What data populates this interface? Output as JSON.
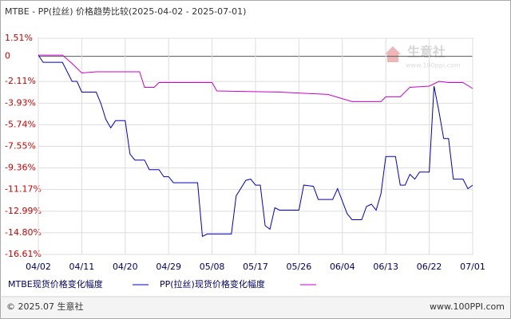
{
  "chart_data": {
    "type": "line",
    "title": "MTBE - PP(拉丝) 价格趋势比较(2025-04-02 - 2025-07-01)",
    "xlim": [
      "04/02",
      "07/01"
    ],
    "xticks": [
      "04/02",
      "04/11",
      "04/20",
      "04/29",
      "05/08",
      "05/17",
      "05/26",
      "06/04",
      "06/13",
      "06/22",
      "07/01"
    ],
    "ylim": [
      -16.61,
      1.51
    ],
    "yticks": [
      {
        "value": 1.51,
        "label": "1.51%"
      },
      0,
      {
        "value": -2.11,
        "label": "-2.11%"
      },
      {
        "value": -3.93,
        "label": "-3.93%"
      },
      {
        "value": -5.74,
        "label": "-5.74%"
      },
      {
        "value": -7.55,
        "label": "-7.55%"
      },
      {
        "value": -9.36,
        "label": "-9.36%"
      },
      {
        "value": -11.17,
        "label": "-11.17%"
      },
      {
        "value": -12.99,
        "label": "-12.99%"
      },
      {
        "value": -14.8,
        "label": "-14.80%"
      },
      {
        "value": -16.61,
        "label": "-16.61%"
      }
    ],
    "grid": true,
    "series": [
      {
        "name": "MTBE现货价格变化幅度",
        "color": "#0000cc",
        "x": [
          "04/02",
          "04/03",
          "04/07",
          "04/09",
          "04/10",
          "04/11",
          "04/14",
          "04/15",
          "04/16",
          "04/17",
          "04/18",
          "04/20",
          "04/21",
          "04/22",
          "04/24",
          "04/25",
          "04/27",
          "04/28",
          "04/29",
          "04/30",
          "05/05",
          "05/06",
          "05/07",
          "05/12",
          "05/13",
          "05/15",
          "05/16",
          "05/17",
          "05/18",
          "05/19",
          "05/20",
          "05/21",
          "05/22",
          "05/26",
          "05/27",
          "05/29",
          "05/30",
          "06/02",
          "06/03",
          "06/05",
          "06/06",
          "06/08",
          "06/09",
          "06/10",
          "06/11",
          "06/12",
          "06/13",
          "06/15",
          "06/16",
          "06/17",
          "06/18",
          "06/19",
          "06/20",
          "06/22",
          "06/23",
          "06/24",
          "06/25",
          "06/26",
          "06/27",
          "06/29",
          "06/30",
          "07/01"
        ],
        "values": [
          0.1,
          -0.5,
          -0.5,
          -2.1,
          -2.1,
          -3.0,
          -3.0,
          -4.0,
          -5.3,
          -6.0,
          -5.4,
          -5.4,
          -8.2,
          -8.7,
          -8.7,
          -9.5,
          -9.5,
          -10.1,
          -10.1,
          -10.6,
          -10.6,
          -15.1,
          -14.9,
          -14.9,
          -11.7,
          -10.4,
          -10.3,
          -10.8,
          -10.8,
          -14.2,
          -14.5,
          -12.7,
          -12.9,
          -12.9,
          -10.8,
          -10.9,
          -12.0,
          -12.0,
          -11.1,
          -13.2,
          -13.7,
          -13.7,
          -12.6,
          -12.4,
          -12.9,
          -11.5,
          -8.4,
          -8.4,
          -10.8,
          -10.8,
          -9.9,
          -10.3,
          -9.7,
          -9.7,
          -2.5,
          -4.6,
          -6.9,
          -6.9,
          -10.3,
          -10.3,
          -11.1,
          -10.8
        ]
      },
      {
        "name": "PP(拉丝)现货价格变化幅度",
        "color": "#cc00cc",
        "x": [
          "04/02",
          "04/07",
          "04/09",
          "04/11",
          "04/14",
          "04/23",
          "04/24",
          "04/26",
          "04/27",
          "05/08",
          "05/09",
          "05/22",
          "06/01",
          "06/06",
          "06/12",
          "06/13",
          "06/16",
          "06/18",
          "06/22",
          "06/24",
          "06/26",
          "06/29",
          "07/01"
        ],
        "values": [
          0.1,
          0.1,
          -0.6,
          -1.4,
          -1.3,
          -1.3,
          -2.6,
          -2.6,
          -2.2,
          -2.2,
          -2.9,
          -3.0,
          -3.2,
          -3.8,
          -3.8,
          -3.4,
          -3.4,
          -2.6,
          -2.5,
          -2.1,
          -2.2,
          -2.2,
          -2.7
        ]
      }
    ]
  },
  "watermark": {
    "name": "生意社",
    "url": "www.100ppi.com"
  },
  "footer": {
    "copyright": "© 2025.07 生意社",
    "site": "www.100PPI.com"
  }
}
